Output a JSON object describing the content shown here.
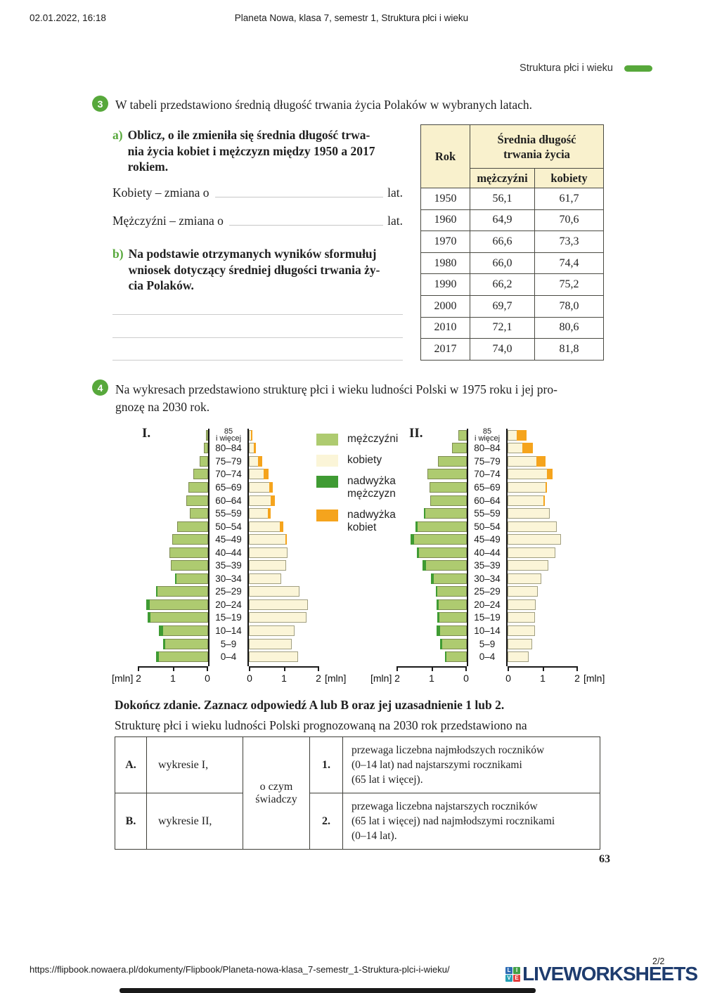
{
  "header": {
    "timestamp": "02.01.2022, 16:18",
    "doc_title": "Planeta Nowa, klasa 7, semestr 1, Struktura płci i wieku",
    "section_label": "Struktura płci i wieku"
  },
  "colors": {
    "accent_green": "#57a83b",
    "male": "#aecb70",
    "female": "#fbf5d8",
    "male_surplus": "#3f9b33",
    "female_surplus": "#f5a41d",
    "table_header_bg": "#f9f1cd",
    "logo_navy": "#1e3c6e",
    "logo_tile_colors": [
      "#2f6db5",
      "#43a047",
      "#26a0b5",
      "#e23d3d"
    ]
  },
  "task3": {
    "number": "3",
    "intro": "W tabeli przedstawiono średnią długość trwania życia Polaków w wybranych latach.",
    "a_label": "a)",
    "a_text": "Oblicz, o ile zmieniła się średnia długość trwa-\nnia życia kobiet i mężczyzn między 1950 a 2017\nrokiem.",
    "kobiety_label": "Kobiety – zmiana o",
    "kobiety_suffix": "lat.",
    "mezczyzni_label": "Mężczyźni – zmiana o",
    "mezczyzni_suffix": "lat.",
    "b_label": "b)",
    "b_text": "Na podstawie otrzymanych wyników sformułuj\nwniosek dotyczący średniej długości trwania ży-\ncia Polaków."
  },
  "life_table": {
    "col_rok": "Rok",
    "col_span": "Średnia długość\ntrwania życia",
    "col_m": "mężczyźni",
    "col_k": "kobiety",
    "rows": [
      [
        "1950",
        "56,1",
        "61,7"
      ],
      [
        "1960",
        "64,9",
        "70,6"
      ],
      [
        "1970",
        "66,6",
        "73,3"
      ],
      [
        "1980",
        "66,0",
        "74,4"
      ],
      [
        "1990",
        "66,2",
        "75,2"
      ],
      [
        "2000",
        "69,7",
        "78,0"
      ],
      [
        "2010",
        "72,1",
        "80,6"
      ],
      [
        "2017",
        "74,0",
        "81,8"
      ]
    ]
  },
  "task4": {
    "number": "4",
    "text": "Na wykresach przedstawiono strukturę płci i wieku ludności Polski w 1975 roku i jej pro-\ngnozę na 2030 rok."
  },
  "legend": {
    "items": [
      {
        "key": "male",
        "label": "mężczyźni"
      },
      {
        "key": "female",
        "label": "kobiety"
      },
      {
        "key": "male_surplus",
        "label": "nadwyżka\nmężczyzn"
      },
      {
        "key": "female_surplus",
        "label": "nadwyżka\nkobiet"
      }
    ]
  },
  "pyramid_axis": {
    "unit": "[mln]",
    "left": [
      "2",
      "1",
      "0"
    ],
    "right": [
      "0",
      "1",
      "2"
    ]
  },
  "chart_data": [
    {
      "type": "bar",
      "variant": "population-pyramid",
      "title_label": "I.",
      "year_depicted": 1975,
      "unit": "mln",
      "x_range_each_side": [
        0,
        2
      ],
      "categories_top_to_bottom": [
        "85\ni więcej",
        "80–84",
        "75–79",
        "70–74",
        "65–69",
        "60–64",
        "55–59",
        "50–54",
        "45–49",
        "40–44",
        "35–39",
        "30–34",
        "25–29",
        "20–24",
        "15–19",
        "10–14",
        "5–9",
        "0–4"
      ],
      "series": [
        {
          "name": "mężczyźni",
          "values": [
            0.07,
            0.13,
            0.25,
            0.42,
            0.57,
            0.62,
            0.53,
            0.88,
            1.03,
            1.1,
            1.06,
            0.95,
            1.48,
            1.77,
            1.73,
            1.4,
            1.28,
            1.48
          ]
        },
        {
          "name": "kobiety",
          "values": [
            0.1,
            0.2,
            0.38,
            0.55,
            0.67,
            0.73,
            0.61,
            0.98,
            1.08,
            1.1,
            1.06,
            0.92,
            1.44,
            1.67,
            1.64,
            1.29,
            1.22,
            1.4
          ]
        }
      ]
    },
    {
      "type": "bar",
      "variant": "population-pyramid",
      "title_label": "II.",
      "year_depicted": 2030,
      "unit": "mln",
      "x_range_each_side": [
        0,
        2
      ],
      "categories_top_to_bottom": [
        "85\ni więcej",
        "80–84",
        "75–79",
        "70–74",
        "65–69",
        "60–64",
        "55–59",
        "50–54",
        "45–49",
        "40–44",
        "35–39",
        "30–34",
        "25–29",
        "20–24",
        "15–19",
        "10–14",
        "5–9",
        "0–4"
      ],
      "series": [
        {
          "name": "mężczyźni",
          "values": [
            0.25,
            0.42,
            0.82,
            1.12,
            1.07,
            1.04,
            1.22,
            1.47,
            1.6,
            1.43,
            1.27,
            1.03,
            0.89,
            0.87,
            0.85,
            0.87,
            0.77,
            0.63
          ]
        },
        {
          "name": "kobiety",
          "values": [
            0.53,
            0.71,
            1.08,
            1.28,
            1.11,
            1.05,
            1.2,
            1.4,
            1.51,
            1.36,
            1.16,
            0.95,
            0.85,
            0.8,
            0.78,
            0.77,
            0.7,
            0.6
          ]
        }
      ]
    }
  ],
  "completion": {
    "heading": "Dokończ zdanie. Zaznacz odpowiedź A lub B oraz jej uzasadnienie 1 lub 2.",
    "sentence": "Strukturę płci i wieku ludności Polski prognozowaną na 2030 rok przedstawiono na",
    "options": [
      {
        "letter": "A.",
        "label": "wykresie I,"
      },
      {
        "letter": "B.",
        "label": "wykresie II,"
      }
    ],
    "middle": "o czym\nświadczy",
    "reasons": [
      {
        "number": "1.",
        "text": "przewaga liczebna najmłodszych roczników\n(0–14 lat) nad najstarszymi rocznikami\n(65 lat i więcej)."
      },
      {
        "number": "2.",
        "text": "przewaga liczebna najstarszych roczników\n(65 lat i więcej) nad najmłodszymi rocznikami\n(0–14 lat)."
      }
    ]
  },
  "page_number": "63",
  "footer": {
    "url": "https://flipbook.nowaera.pl/dokumenty/Flipbook/Planeta-nowa-klasa_7-semestr_1-Struktura-plci-i-wieku/",
    "page_indicator": "2/2",
    "logo_text": "LIVEWORKSHEETS",
    "tiles": [
      "L",
      "I",
      "V",
      "E"
    ]
  }
}
